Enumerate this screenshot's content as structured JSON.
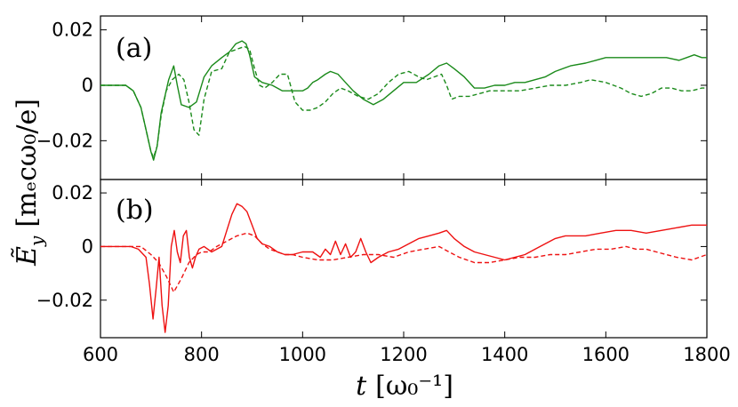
{
  "chart_data": [
    {
      "type": "line",
      "panel_label": "(a)",
      "color": "#1a8a1a",
      "xlim": [
        600,
        1800
      ],
      "ylim": [
        -0.034,
        0.025
      ],
      "yticks": [
        -0.02,
        0,
        0.02
      ],
      "ytick_labels": [
        "−0.02",
        "0",
        "0.02"
      ],
      "series": [
        {
          "style": "solid",
          "x": [
            600,
            650,
            665,
            680,
            690,
            700,
            705,
            712,
            720,
            735,
            745,
            752,
            760,
            775,
            790,
            805,
            820,
            840,
            855,
            868,
            880,
            888,
            895,
            905,
            920,
            940,
            960,
            980,
            1000,
            1010,
            1020,
            1030,
            1045,
            1055,
            1070,
            1085,
            1100,
            1120,
            1140,
            1160,
            1180,
            1200,
            1225,
            1250,
            1270,
            1285,
            1300,
            1320,
            1340,
            1360,
            1380,
            1400,
            1420,
            1440,
            1460,
            1480,
            1500,
            1530,
            1560,
            1580,
            1600,
            1630,
            1660,
            1690,
            1720,
            1745,
            1760,
            1775,
            1790,
            1800
          ],
          "y": [
            0,
            0,
            -0.002,
            -0.008,
            -0.016,
            -0.024,
            -0.027,
            -0.022,
            -0.01,
            0.002,
            0.007,
            0.0,
            -0.007,
            -0.008,
            -0.006,
            0.003,
            0.007,
            0.01,
            0.012,
            0.015,
            0.016,
            0.015,
            0.011,
            0.003,
            0.001,
            0.0,
            -0.002,
            -0.002,
            -0.002,
            -0.001,
            0.001,
            0.002,
            0.004,
            0.005,
            0.004,
            0.001,
            -0.002,
            -0.005,
            -0.007,
            -0.005,
            -0.002,
            0.001,
            0.001,
            0.004,
            0.007,
            0.008,
            0.006,
            0.003,
            -0.001,
            -0.001,
            0.0,
            0.0,
            0.001,
            0.001,
            0.002,
            0.003,
            0.005,
            0.007,
            0.008,
            0.009,
            0.01,
            0.01,
            0.01,
            0.01,
            0.01,
            0.009,
            0.01,
            0.011,
            0.01,
            0.01
          ]
        },
        {
          "style": "dashed",
          "x": [
            600,
            650,
            665,
            680,
            690,
            700,
            705,
            712,
            720,
            730,
            742,
            755,
            765,
            775,
            785,
            795,
            805,
            820,
            840,
            855,
            870,
            885,
            895,
            905,
            915,
            925,
            940,
            955,
            970,
            985,
            1000,
            1015,
            1030,
            1045,
            1060,
            1075,
            1090,
            1110,
            1130,
            1150,
            1170,
            1190,
            1210,
            1230,
            1245,
            1260,
            1275,
            1285,
            1295,
            1310,
            1330,
            1350,
            1370,
            1400,
            1430,
            1460,
            1490,
            1520,
            1550,
            1570,
            1600,
            1630,
            1650,
            1670,
            1690,
            1710,
            1730,
            1750,
            1770,
            1790,
            1800
          ],
          "y": [
            0,
            0,
            -0.002,
            -0.008,
            -0.016,
            -0.024,
            -0.026,
            -0.022,
            -0.011,
            -0.002,
            0.002,
            0.004,
            0.002,
            -0.006,
            -0.016,
            -0.018,
            -0.005,
            0.005,
            0.006,
            0.012,
            0.013,
            0.014,
            0.013,
            0.006,
            0.0,
            -0.001,
            0.001,
            0.004,
            0.004,
            -0.006,
            -0.009,
            -0.009,
            -0.008,
            -0.006,
            -0.003,
            -0.001,
            -0.002,
            -0.004,
            -0.005,
            -0.003,
            0.001,
            0.004,
            0.005,
            0.003,
            0.002,
            0.003,
            0.004,
            0.0,
            -0.005,
            -0.004,
            -0.004,
            -0.003,
            -0.002,
            -0.002,
            -0.002,
            -0.001,
            0.0,
            0.0,
            0.001,
            0.002,
            0.001,
            -0.001,
            -0.003,
            -0.004,
            -0.003,
            -0.001,
            -0.001,
            -0.002,
            -0.002,
            -0.001,
            -0.001
          ]
        }
      ]
    },
    {
      "type": "line",
      "panel_label": "(b)",
      "color": "#ee1111",
      "xlim": [
        600,
        1800
      ],
      "ylim": [
        -0.034,
        0.025
      ],
      "yticks": [
        -0.02,
        0,
        0.02
      ],
      "ytick_labels": [
        "−0.02",
        "0",
        "0.02"
      ],
      "series": [
        {
          "style": "solid",
          "x": [
            600,
            660,
            675,
            690,
            697,
            704,
            710,
            716,
            722,
            728,
            734,
            740,
            746,
            752,
            758,
            764,
            770,
            776,
            782,
            788,
            795,
            805,
            820,
            840,
            850,
            860,
            870,
            880,
            890,
            900,
            910,
            920,
            935,
            950,
            965,
            980,
            1000,
            1020,
            1035,
            1045,
            1055,
            1065,
            1075,
            1085,
            1095,
            1105,
            1115,
            1125,
            1135,
            1150,
            1170,
            1190,
            1210,
            1230,
            1250,
            1270,
            1285,
            1300,
            1320,
            1340,
            1360,
            1380,
            1400,
            1420,
            1440,
            1460,
            1480,
            1500,
            1520,
            1540,
            1560,
            1590,
            1620,
            1650,
            1680,
            1710,
            1740,
            1770,
            1800
          ],
          "y": [
            0,
            0,
            -0.001,
            -0.004,
            -0.014,
            -0.027,
            -0.016,
            -0.004,
            -0.022,
            -0.032,
            -0.022,
            0.0,
            0.006,
            -0.002,
            -0.006,
            0.004,
            0.006,
            -0.004,
            -0.008,
            -0.004,
            -0.001,
            0.0,
            -0.002,
            0.0,
            0.006,
            0.012,
            0.016,
            0.015,
            0.013,
            0.008,
            0.003,
            0.001,
            0.0,
            -0.002,
            -0.003,
            -0.003,
            -0.002,
            -0.002,
            -0.004,
            -0.001,
            -0.003,
            0.002,
            -0.003,
            0.001,
            -0.004,
            -0.002,
            0.003,
            -0.002,
            -0.006,
            -0.004,
            -0.002,
            -0.001,
            0.001,
            0.003,
            0.004,
            0.005,
            0.006,
            0.003,
            0.0,
            -0.002,
            -0.003,
            -0.004,
            -0.005,
            -0.004,
            -0.003,
            -0.001,
            0.001,
            0.003,
            0.004,
            0.004,
            0.004,
            0.005,
            0.006,
            0.006,
            0.005,
            0.006,
            0.007,
            0.008,
            0.008
          ]
        },
        {
          "style": "dashed",
          "x": [
            600,
            680,
            700,
            715,
            730,
            745,
            760,
            775,
            790,
            800,
            815,
            830,
            850,
            870,
            890,
            905,
            920,
            935,
            950,
            965,
            980,
            1000,
            1030,
            1060,
            1090,
            1120,
            1150,
            1180,
            1210,
            1240,
            1270,
            1290,
            1310,
            1340,
            1370,
            1400,
            1430,
            1460,
            1490,
            1520,
            1550,
            1580,
            1610,
            1640,
            1660,
            1680,
            1700,
            1720,
            1740,
            1770,
            1800
          ],
          "y": [
            0,
            0,
            -0.003,
            -0.006,
            -0.011,
            -0.017,
            -0.012,
            -0.006,
            -0.003,
            -0.002,
            -0.002,
            0.0,
            0.002,
            0.004,
            0.005,
            0.004,
            0.001,
            -0.001,
            -0.002,
            -0.003,
            -0.003,
            -0.004,
            -0.005,
            -0.005,
            -0.004,
            -0.003,
            -0.003,
            -0.004,
            -0.002,
            -0.001,
            0.0,
            -0.002,
            -0.004,
            -0.006,
            -0.006,
            -0.005,
            -0.004,
            -0.004,
            -0.003,
            -0.003,
            -0.002,
            -0.001,
            -0.001,
            0.0,
            -0.001,
            -0.001,
            -0.002,
            -0.003,
            -0.004,
            -0.005,
            -0.003
          ]
        }
      ]
    }
  ],
  "x_axis": {
    "ticks": [
      600,
      800,
      1000,
      1200,
      1400,
      1600,
      1800
    ],
    "tick_labels": [
      "600",
      "800",
      "1000",
      "1200",
      "1400",
      "1600",
      "1800"
    ],
    "label_var": "t",
    "label_unit": "[ω₀⁻¹]"
  },
  "y_axis": {
    "label_var": "Ẽ",
    "label_sub": "y",
    "label_unit": "[mₑcω₀/e]"
  }
}
